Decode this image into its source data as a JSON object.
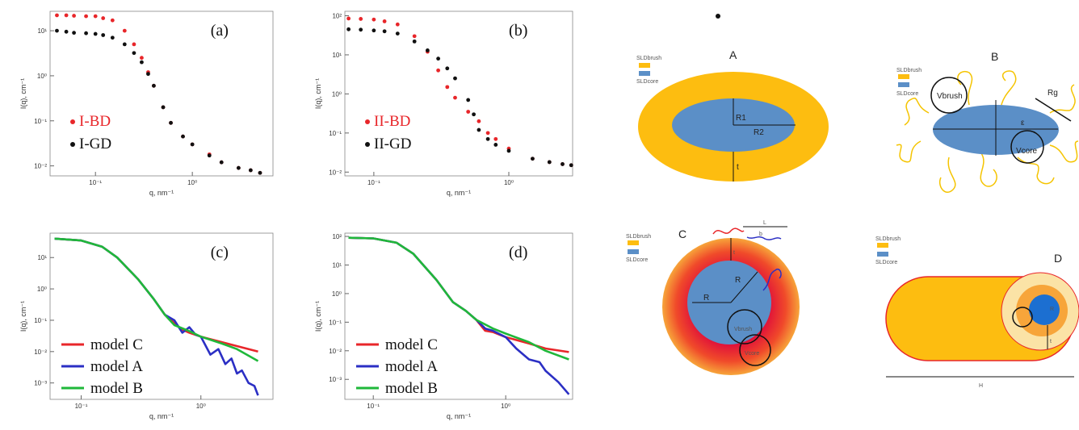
{
  "chart_data": [
    {
      "type": "scatter",
      "panel_label": "(a)",
      "x_label": "q, nm⁻¹",
      "y_label": "I(q), cm⁻¹",
      "log_x": true,
      "log_y": true,
      "legend": "lower left",
      "xlim": [
        0.034,
        6.8
      ],
      "xticks": [
        {
          "value": 0.1,
          "label": "10⁻¹"
        },
        {
          "value": 1,
          "label": "10⁰"
        }
      ],
      "ylim": [
        0.006,
        27
      ],
      "yticks": [
        {
          "value": 0.01,
          "label": "10⁻²"
        },
        {
          "value": 0.1,
          "label": "10⁻¹"
        },
        {
          "value": 1,
          "label": "10⁰"
        },
        {
          "value": 10,
          "label": "10¹"
        }
      ],
      "series": [
        {
          "name": "I-BD",
          "color": "#e8262a",
          "x": [
            0.04,
            0.05,
            0.06,
            0.08,
            0.1,
            0.12,
            0.15,
            0.2,
            0.25,
            0.3,
            0.35,
            0.4,
            0.5,
            0.6,
            0.8,
            1,
            1.5,
            2,
            3,
            4,
            5
          ],
          "values": [
            22,
            22,
            21.5,
            21,
            21,
            19,
            17,
            10,
            5,
            2.5,
            1.2,
            0.6,
            0.2,
            0.09,
            0.045,
            0.03,
            0.018,
            0.012,
            0.009,
            0.008,
            0.007
          ]
        },
        {
          "name": "I-GD",
          "color": "#111111",
          "x": [
            0.04,
            0.05,
            0.06,
            0.08,
            0.1,
            0.12,
            0.15,
            0.2,
            0.25,
            0.3,
            0.35,
            0.4,
            0.5,
            0.6,
            0.8,
            1,
            1.5,
            2,
            3,
            4,
            5
          ],
          "values": [
            10,
            9.5,
            9,
            8.8,
            8.5,
            8,
            7,
            5,
            3.2,
            2,
            1.1,
            0.6,
            0.2,
            0.09,
            0.045,
            0.03,
            0.017,
            0.012,
            0.009,
            0.008,
            0.007
          ]
        }
      ]
    },
    {
      "type": "scatter",
      "panel_label": "(b)",
      "x_label": "q, nm⁻¹",
      "y_label": "I(q), cm⁻¹",
      "log_x": true,
      "log_y": true,
      "legend": "lower left",
      "xlim": [
        0.061,
        2.97
      ],
      "xticks": [
        {
          "value": 0.1,
          "label": "10⁻¹"
        },
        {
          "value": 1,
          "label": "10⁰"
        }
      ],
      "ylim": [
        0.008,
        130
      ],
      "yticks": [
        {
          "value": 0.01,
          "label": "10⁻²"
        },
        {
          "value": 0.1,
          "label": "10⁻¹"
        },
        {
          "value": 1,
          "label": "10⁰"
        },
        {
          "value": 10,
          "label": "10¹"
        },
        {
          "value": 100,
          "label": "10²"
        }
      ],
      "series": [
        {
          "name": "II-BD",
          "color": "#e8262a",
          "x": [
            0.065,
            0.08,
            0.1,
            0.12,
            0.15,
            0.2,
            0.25,
            0.3,
            0.35,
            0.4,
            0.5,
            0.6,
            0.7,
            0.8,
            1,
            1.5,
            2,
            2.5,
            2.9
          ],
          "values": [
            85,
            83,
            80,
            72,
            60,
            30,
            12,
            4,
            1.5,
            0.8,
            0.35,
            0.2,
            0.1,
            0.07,
            0.04,
            0.022,
            0.018,
            0.016,
            0.015
          ]
        },
        {
          "name": "II-GD",
          "color": "#111111",
          "x": [
            0.065,
            0.08,
            0.1,
            0.12,
            0.15,
            0.2,
            0.25,
            0.3,
            0.35,
            0.4,
            0.5,
            0.55,
            0.6,
            0.7,
            0.8,
            1,
            1.5,
            2,
            2.5,
            2.9
          ],
          "values": [
            45,
            44,
            42,
            40,
            35,
            22,
            13,
            8,
            4.5,
            2.5,
            0.7,
            0.3,
            0.12,
            0.07,
            0.05,
            0.035,
            0.022,
            0.018,
            0.016,
            0.015
          ]
        }
      ]
    },
    {
      "type": "line",
      "panel_label": "(c)",
      "x_label": "q, nm⁻¹",
      "y_label": "I(q), cm⁻¹",
      "log_x": true,
      "log_y": true,
      "legend": "lower left",
      "xlim": [
        0.055,
        4
      ],
      "xticks": [
        {
          "value": 0.1,
          "label": "10⁻¹"
        },
        {
          "value": 1,
          "label": "10⁰"
        }
      ],
      "ylim": [
        0.0003,
        60
      ],
      "yticks": [
        {
          "value": 0.001,
          "label": "10⁻³"
        },
        {
          "value": 0.01,
          "label": "10⁻²"
        },
        {
          "value": 0.1,
          "label": "10⁻¹"
        },
        {
          "value": 1,
          "label": "10⁰"
        },
        {
          "value": 10,
          "label": "10¹"
        }
      ],
      "series": [
        {
          "name": "model C",
          "color": "#e8262a",
          "x": [
            0.06,
            0.1,
            0.15,
            0.2,
            0.3,
            0.4,
            0.5,
            0.6,
            0.7,
            0.8,
            1,
            1.5,
            2,
            3
          ],
          "values": [
            40,
            35,
            22,
            10,
            2,
            0.5,
            0.15,
            0.08,
            0.05,
            0.04,
            0.03,
            0.02,
            0.015,
            0.01
          ]
        },
        {
          "name": "model A",
          "color": "#2b2fc4",
          "x": [
            0.06,
            0.1,
            0.15,
            0.2,
            0.3,
            0.4,
            0.5,
            0.6,
            0.7,
            0.8,
            0.9,
            1,
            1.2,
            1.4,
            1.6,
            1.8,
            2,
            2.2,
            2.5,
            2.8,
            3
          ],
          "values": [
            40,
            35,
            22,
            10,
            2,
            0.5,
            0.15,
            0.1,
            0.04,
            0.06,
            0.035,
            0.03,
            0.008,
            0.012,
            0.004,
            0.006,
            0.002,
            0.0025,
            0.001,
            0.0008,
            0.0004
          ]
        },
        {
          "name": "model B",
          "color": "#1fb83a",
          "x": [
            0.06,
            0.1,
            0.15,
            0.2,
            0.3,
            0.4,
            0.5,
            0.6,
            0.8,
            1,
            1.5,
            2,
            3
          ],
          "values": [
            40,
            35,
            22,
            10,
            2,
            0.5,
            0.15,
            0.07,
            0.045,
            0.03,
            0.018,
            0.012,
            0.005
          ]
        }
      ]
    },
    {
      "type": "line",
      "panel_label": "(d)",
      "x_label": "q, nm⁻¹",
      "y_label": "I(q), cm⁻¹",
      "log_x": true,
      "log_y": true,
      "legend": "lower left",
      "xlim": [
        0.061,
        3.2
      ],
      "xticks": [
        {
          "value": 0.1,
          "label": "10⁻¹"
        },
        {
          "value": 1,
          "label": "10⁰"
        }
      ],
      "ylim": [
        0.0002,
        130
      ],
      "yticks": [
        {
          "value": 0.001,
          "label": "10⁻³"
        },
        {
          "value": 0.01,
          "label": "10⁻²"
        },
        {
          "value": 0.1,
          "label": "10⁻¹"
        },
        {
          "value": 1,
          "label": "10⁰"
        },
        {
          "value": 10,
          "label": "10¹"
        },
        {
          "value": 100,
          "label": "10²"
        }
      ],
      "series": [
        {
          "name": "model C",
          "color": "#e8262a",
          "x": [
            0.065,
            0.1,
            0.15,
            0.2,
            0.3,
            0.4,
            0.5,
            0.6,
            0.7,
            0.8,
            1,
            1.5,
            2,
            3
          ],
          "values": [
            90,
            85,
            60,
            25,
            3,
            0.5,
            0.25,
            0.12,
            0.05,
            0.045,
            0.03,
            0.018,
            0.012,
            0.009
          ]
        },
        {
          "name": "model A",
          "color": "#2b2fc4",
          "x": [
            0.065,
            0.1,
            0.15,
            0.2,
            0.3,
            0.4,
            0.5,
            0.6,
            0.7,
            0.8,
            1,
            1.2,
            1.5,
            1.8,
            2,
            2.5,
            3
          ],
          "values": [
            90,
            85,
            60,
            25,
            3,
            0.5,
            0.25,
            0.12,
            0.06,
            0.05,
            0.03,
            0.012,
            0.005,
            0.004,
            0.002,
            0.0008,
            0.0003
          ]
        },
        {
          "name": "model B",
          "color": "#1fb83a",
          "x": [
            0.065,
            0.1,
            0.15,
            0.2,
            0.3,
            0.4,
            0.5,
            0.6,
            0.8,
            1,
            1.5,
            2,
            3
          ],
          "values": [
            90,
            85,
            60,
            25,
            3,
            0.5,
            0.25,
            0.12,
            0.06,
            0.04,
            0.02,
            0.01,
            0.005
          ]
        }
      ]
    }
  ],
  "diagrams": [
    {
      "title": "A",
      "legend": [
        "SLDbrush",
        "SLDcore"
      ],
      "labels": [
        "R1",
        "R2",
        "t"
      ]
    },
    {
      "title": "B",
      "legend": [
        "SLDbrush",
        "SLDcore"
      ],
      "labels": [
        "Vbrush",
        "Rg",
        "ε",
        "Vcore"
      ]
    },
    {
      "title": "C",
      "legend": [
        "SLDbrush",
        "SLDcore"
      ],
      "labels": [
        "L",
        "b",
        "t",
        "R",
        "R",
        "Vbrush",
        "Vcore"
      ]
    },
    {
      "title": "D",
      "legend": [
        "SLDbrush",
        "SLDcore"
      ],
      "labels": [
        "R",
        "t",
        "H"
      ]
    }
  ]
}
